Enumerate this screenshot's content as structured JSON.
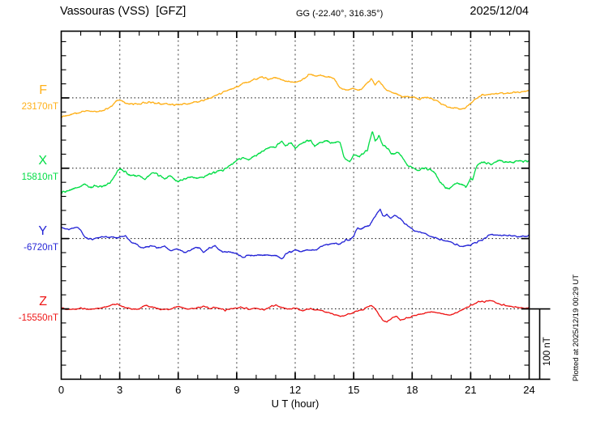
{
  "header": {
    "title": "Vassouras (VSS)  [GFZ]",
    "coords": "GG (-22.40°, 316.35°)",
    "date": "2025/12/04"
  },
  "footer": {
    "xlabel": "U T (hour)",
    "plotted_at": "Plotted at 2025/12/19 00:29 UT",
    "scale_bar_label": "100 nT"
  },
  "chart_data": {
    "type": "line",
    "title": "Vassouras (VSS)  [GFZ]",
    "subtitle": "GG (-22.40°, 316.35°)",
    "date": "2025/12/04",
    "xlabel": "U T (hour)",
    "x_range_hours": [
      0,
      24
    ],
    "x_ticks": [
      "0",
      "3",
      "6",
      "9",
      "12",
      "15",
      "18",
      "21",
      "24"
    ],
    "x_minor_step_hours": 1,
    "x_gridline_hours": [
      3,
      6,
      9,
      12,
      15,
      18,
      21
    ],
    "y_tick_step_nT": 20,
    "scale_bar_nT": 100,
    "grid": "dotted baselines per trace, dotted vertical lines every 3 h",
    "legend_position": "left margin, one colored label per trace",
    "series": [
      {
        "name": "F",
        "base_label": "23170nT",
        "base_value_nT": 23170,
        "color": "#ffb018",
        "keypoints_hour_offsetnT": [
          [
            0,
            -27
          ],
          [
            0.5,
            -24
          ],
          [
            1,
            -20
          ],
          [
            1.5,
            -18
          ],
          [
            2,
            -19
          ],
          [
            2.5,
            -13
          ],
          [
            2.9,
            -3
          ],
          [
            3.1,
            -5
          ],
          [
            3.5,
            -8
          ],
          [
            4,
            -8
          ],
          [
            4.5,
            -6
          ],
          [
            5,
            -8
          ],
          [
            5.5,
            -9
          ],
          [
            6,
            -10
          ],
          [
            6.5,
            -8
          ],
          [
            7,
            -5
          ],
          [
            7.5,
            -2
          ],
          [
            8,
            4
          ],
          [
            8.5,
            10
          ],
          [
            9,
            16
          ],
          [
            9.5,
            22
          ],
          [
            10,
            27
          ],
          [
            10.3,
            30
          ],
          [
            10.7,
            26
          ],
          [
            11,
            29
          ],
          [
            11.3,
            26
          ],
          [
            11.7,
            23
          ],
          [
            12,
            22
          ],
          [
            12.3,
            25
          ],
          [
            12.7,
            33
          ],
          [
            13,
            31
          ],
          [
            13.3,
            33
          ],
          [
            13.7,
            29
          ],
          [
            14,
            27
          ],
          [
            14.3,
            13
          ],
          [
            14.7,
            11
          ],
          [
            15,
            13
          ],
          [
            15.3,
            11
          ],
          [
            15.6,
            19
          ],
          [
            15.9,
            27
          ],
          [
            16.1,
            19
          ],
          [
            16.3,
            25
          ],
          [
            16.6,
            13
          ],
          [
            17,
            8
          ],
          [
            17.5,
            2
          ],
          [
            18,
            1
          ],
          [
            18.3,
            -2
          ],
          [
            18.7,
            0
          ],
          [
            19,
            -1
          ],
          [
            19.3,
            -5
          ],
          [
            19.6,
            -10
          ],
          [
            19.9,
            -13
          ],
          [
            20.2,
            -15
          ],
          [
            20.5,
            -16
          ],
          [
            20.7,
            -14
          ],
          [
            20.9,
            -11
          ],
          [
            21.1,
            -5
          ],
          [
            21.3,
            0
          ],
          [
            21.5,
            3
          ],
          [
            21.8,
            5
          ],
          [
            22.2,
            6
          ],
          [
            22.6,
            7
          ],
          [
            23,
            7
          ],
          [
            23.4,
            8
          ],
          [
            23.7,
            9
          ],
          [
            24,
            10
          ]
        ]
      },
      {
        "name": "X",
        "base_label": "15810nT",
        "base_value_nT": 15810,
        "color": "#00dd44",
        "keypoints_hour_offsetnT": [
          [
            0,
            -35
          ],
          [
            0.3,
            -32
          ],
          [
            0.6,
            -29
          ],
          [
            1,
            -25
          ],
          [
            1.2,
            -23
          ],
          [
            1.5,
            -27
          ],
          [
            1.8,
            -25
          ],
          [
            2,
            -26
          ],
          [
            2.3,
            -24
          ],
          [
            2.6,
            -18
          ],
          [
            3,
            0
          ],
          [
            3.2,
            -4
          ],
          [
            3.5,
            -9
          ],
          [
            3.8,
            -12
          ],
          [
            4,
            -11
          ],
          [
            4.3,
            -15
          ],
          [
            4.6,
            -9
          ],
          [
            4.8,
            -6
          ],
          [
            5,
            -10
          ],
          [
            5.3,
            -15
          ],
          [
            5.6,
            -12
          ],
          [
            5.8,
            -16
          ],
          [
            6,
            -19
          ],
          [
            6.3,
            -16
          ],
          [
            6.6,
            -13
          ],
          [
            7,
            -15
          ],
          [
            7.3,
            -12
          ],
          [
            7.7,
            -8
          ],
          [
            8,
            -5
          ],
          [
            8.3,
            -3
          ],
          [
            8.6,
            4
          ],
          [
            9,
            11
          ],
          [
            9.3,
            15
          ],
          [
            9.6,
            13
          ],
          [
            10,
            18
          ],
          [
            10.3,
            24
          ],
          [
            10.6,
            29
          ],
          [
            11,
            31
          ],
          [
            11.3,
            38
          ],
          [
            11.5,
            33
          ],
          [
            11.8,
            37
          ],
          [
            12,
            29
          ],
          [
            12.2,
            33
          ],
          [
            12.5,
            38
          ],
          [
            12.8,
            39
          ],
          [
            13,
            30
          ],
          [
            13.3,
            37
          ],
          [
            13.6,
            39
          ],
          [
            14,
            35
          ],
          [
            14.3,
            37
          ],
          [
            14.5,
            16
          ],
          [
            14.8,
            9
          ],
          [
            15,
            18
          ],
          [
            15.3,
            15
          ],
          [
            15.5,
            22
          ],
          [
            15.7,
            26
          ],
          [
            15.95,
            53
          ],
          [
            16.1,
            39
          ],
          [
            16.3,
            46
          ],
          [
            16.5,
            33
          ],
          [
            16.8,
            26
          ],
          [
            17,
            19
          ],
          [
            17.2,
            24
          ],
          [
            17.5,
            15
          ],
          [
            17.8,
            3
          ],
          [
            18,
            1
          ],
          [
            18.3,
            -3
          ],
          [
            18.6,
            1
          ],
          [
            19,
            -4
          ],
          [
            19.2,
            -8
          ],
          [
            19.45,
            -20
          ],
          [
            19.7,
            -27
          ],
          [
            19.9,
            -30
          ],
          [
            20.1,
            -25
          ],
          [
            20.3,
            -22
          ],
          [
            20.45,
            -24
          ],
          [
            20.6,
            -23
          ],
          [
            20.75,
            -28
          ],
          [
            20.9,
            -20
          ],
          [
            21,
            -14
          ],
          [
            21.1,
            -17
          ],
          [
            21.25,
            -2
          ],
          [
            21.4,
            6
          ],
          [
            21.55,
            9
          ],
          [
            21.7,
            8
          ],
          [
            21.9,
            7
          ],
          [
            22.05,
            5
          ],
          [
            22.2,
            9
          ],
          [
            22.4,
            10
          ],
          [
            22.7,
            9
          ],
          [
            23,
            10
          ],
          [
            23.3,
            9
          ],
          [
            23.6,
            10
          ],
          [
            24,
            10
          ]
        ]
      },
      {
        "name": "Y",
        "base_label": "-6720nT",
        "base_value_nT": -6720,
        "color": "#2424d6",
        "keypoints_hour_offsetnT": [
          [
            0,
            15
          ],
          [
            0.4,
            13
          ],
          [
            0.8,
            17
          ],
          [
            1,
            12
          ],
          [
            1.2,
            2
          ],
          [
            1.5,
            -1
          ],
          [
            2,
            2
          ],
          [
            2.5,
            2
          ],
          [
            3,
            2
          ],
          [
            3.3,
            3
          ],
          [
            3.6,
            -5
          ],
          [
            4,
            -11
          ],
          [
            4.3,
            -13
          ],
          [
            4.6,
            -11
          ],
          [
            5,
            -13
          ],
          [
            5.3,
            -11
          ],
          [
            5.6,
            -18
          ],
          [
            6,
            -15
          ],
          [
            6.3,
            -20
          ],
          [
            6.6,
            -17
          ],
          [
            7,
            -12
          ],
          [
            7.3,
            -19
          ],
          [
            7.6,
            -13
          ],
          [
            7.9,
            -11
          ],
          [
            8.2,
            -18
          ],
          [
            8.5,
            -20
          ],
          [
            8.8,
            -19
          ],
          [
            9,
            -22
          ],
          [
            9.3,
            -27
          ],
          [
            9.6,
            -23
          ],
          [
            10,
            -24
          ],
          [
            10.5,
            -23
          ],
          [
            11,
            -24
          ],
          [
            11.3,
            -29
          ],
          [
            11.6,
            -20
          ],
          [
            12,
            -17
          ],
          [
            12.3,
            -19
          ],
          [
            12.6,
            -16
          ],
          [
            13,
            -17
          ],
          [
            13.3,
            -12
          ],
          [
            13.6,
            -9
          ],
          [
            14,
            -6
          ],
          [
            14.3,
            -8
          ],
          [
            14.6,
            -2
          ],
          [
            14.8,
            -3
          ],
          [
            15,
            4
          ],
          [
            15.2,
            15
          ],
          [
            15.4,
            13
          ],
          [
            15.6,
            17
          ],
          [
            15.8,
            19
          ],
          [
            16,
            27
          ],
          [
            16.36,
            41
          ],
          [
            16.5,
            31
          ],
          [
            16.7,
            34
          ],
          [
            16.9,
            29
          ],
          [
            17.1,
            32
          ],
          [
            17.3,
            30
          ],
          [
            17.6,
            22
          ],
          [
            18,
            13
          ],
          [
            18.5,
            8
          ],
          [
            19,
            3
          ],
          [
            19.5,
            -2
          ],
          [
            20,
            -6
          ],
          [
            20.5,
            -11
          ],
          [
            21,
            -9
          ],
          [
            21.5,
            -3
          ],
          [
            22,
            5
          ],
          [
            22.3,
            6
          ],
          [
            22.6,
            4
          ],
          [
            23,
            5
          ],
          [
            23.5,
            3
          ],
          [
            24,
            4
          ]
        ]
      },
      {
        "name": "Z",
        "base_label": "-15550nT",
        "base_value_nT": -15550,
        "color": "#ee1616",
        "keypoints_hour_offsetnT": [
          [
            0,
            1
          ],
          [
            0.5,
            -1
          ],
          [
            1,
            1
          ],
          [
            1.5,
            -1
          ],
          [
            2,
            1
          ],
          [
            2.4,
            4
          ],
          [
            2.85,
            7
          ],
          [
            3.1,
            4
          ],
          [
            3.4,
            1
          ],
          [
            3.7,
            -1
          ],
          [
            4,
            0
          ],
          [
            4.35,
            5
          ],
          [
            4.7,
            2
          ],
          [
            5,
            0
          ],
          [
            5.5,
            -1
          ],
          [
            6,
            3
          ],
          [
            6.3,
            1
          ],
          [
            6.7,
            0
          ],
          [
            7,
            2
          ],
          [
            7.3,
            4
          ],
          [
            7.6,
            1
          ],
          [
            8,
            2
          ],
          [
            8.4,
            -2
          ],
          [
            8.8,
            0
          ],
          [
            9.2,
            3
          ],
          [
            9.6,
            0
          ],
          [
            10,
            1
          ],
          [
            10.4,
            -1
          ],
          [
            10.8,
            4
          ],
          [
            11,
            5
          ],
          [
            11.3,
            2
          ],
          [
            11.6,
            -1
          ],
          [
            12,
            1
          ],
          [
            12.4,
            -2
          ],
          [
            12.8,
            0
          ],
          [
            13.2,
            -2
          ],
          [
            13.6,
            -4
          ],
          [
            14,
            -8
          ],
          [
            14.3,
            -11
          ],
          [
            14.6,
            -9
          ],
          [
            15,
            -5
          ],
          [
            15.4,
            -2
          ],
          [
            15.7,
            2
          ],
          [
            15.9,
            5
          ],
          [
            16.1,
            1
          ],
          [
            16.3,
            -9
          ],
          [
            16.5,
            -16
          ],
          [
            16.7,
            -18
          ],
          [
            17,
            -13
          ],
          [
            17.2,
            -11
          ],
          [
            17.4,
            -17
          ],
          [
            17.7,
            -13
          ],
          [
            18,
            -11
          ],
          [
            18.4,
            -8
          ],
          [
            18.8,
            -5
          ],
          [
            19.2,
            -5
          ],
          [
            19.6,
            -7
          ],
          [
            20,
            -9
          ],
          [
            20.4,
            -4
          ],
          [
            20.8,
            2
          ],
          [
            21.1,
            6
          ],
          [
            21.4,
            11
          ],
          [
            21.7,
            10
          ],
          [
            22,
            12
          ],
          [
            22.3,
            9
          ],
          [
            22.6,
            6
          ],
          [
            23,
            4
          ],
          [
            23.4,
            2
          ],
          [
            24,
            1
          ]
        ]
      }
    ]
  },
  "style": {
    "background": "#ffffff",
    "axis_color": "#000000",
    "baseline_dotted_color": "#111111",
    "gridline_dotted_color": "#777777"
  }
}
